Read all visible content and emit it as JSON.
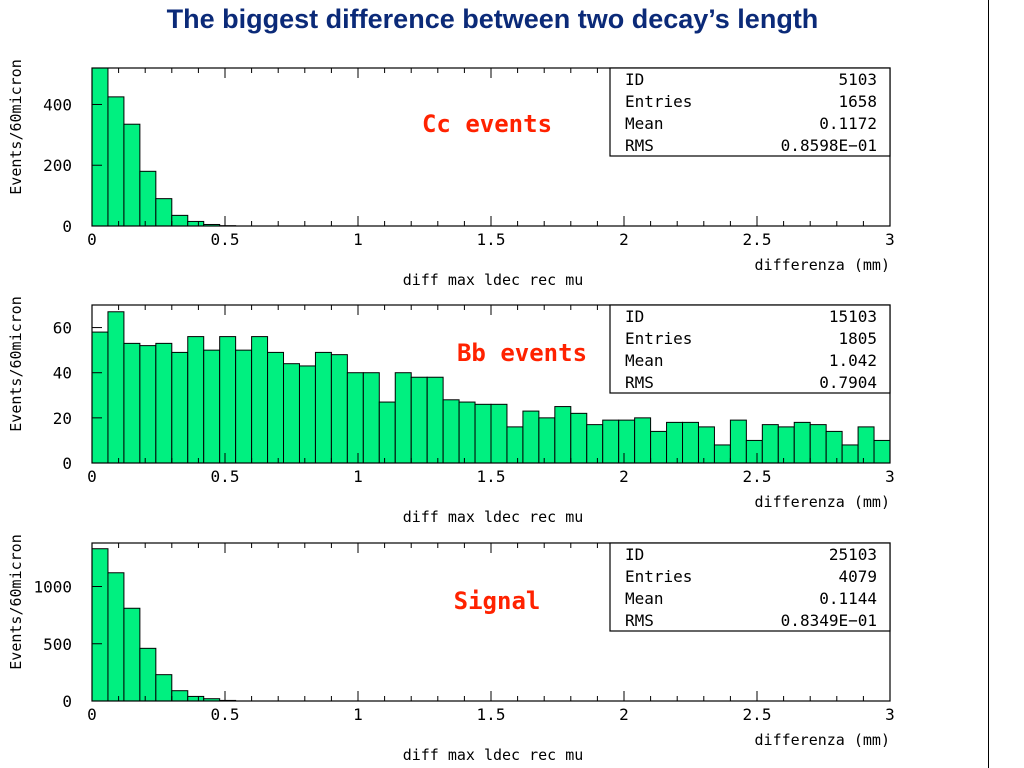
{
  "page": {
    "title": "The biggest difference between two decay’s length"
  },
  "colors": {
    "fill": "#00f080",
    "title": "#0b2a78",
    "annotation": "#ff2200",
    "frame": "#000000"
  },
  "chart_data": [
    {
      "type": "histogram",
      "annotation": "Cc events",
      "ylabel": "Events/60micron",
      "xlabel": "differenza (mm)",
      "histogram_title": "diff max ldec rec mu",
      "xlim": [
        0,
        3
      ],
      "ylim": [
        0,
        520
      ],
      "xticks": [
        "0",
        "0.5",
        "1",
        "1.5",
        "2",
        "2.5",
        "3"
      ],
      "yticks": [
        0,
        200,
        400
      ],
      "bin_width": 0.06,
      "values": [
        530,
        425,
        335,
        180,
        90,
        35,
        15,
        5,
        1,
        0,
        0,
        0,
        0,
        0,
        0,
        0,
        0,
        0,
        0,
        0,
        0,
        0,
        0,
        0,
        0,
        0,
        0,
        0,
        0,
        0,
        0,
        0,
        0,
        0,
        0,
        0,
        0,
        0,
        0,
        0,
        0,
        0,
        0,
        0,
        0,
        0,
        0,
        0,
        0,
        0
      ],
      "stats": [
        {
          "label": "ID",
          "value": "5103"
        },
        {
          "label": "Entries",
          "value": "1658"
        },
        {
          "label": "Mean",
          "value": "0.1172"
        },
        {
          "label": "RMS",
          "value": "0.8598E−01"
        }
      ]
    },
    {
      "type": "histogram",
      "annotation": "Bb events",
      "ylabel": "Events/60micron",
      "xlabel": "differenza (mm)",
      "histogram_title": "diff max ldec rec mu",
      "xlim": [
        0,
        3
      ],
      "ylim": [
        0,
        70
      ],
      "xticks": [
        "0",
        "0.5",
        "1",
        "1.5",
        "2",
        "2.5",
        "3"
      ],
      "yticks": [
        0,
        20,
        40,
        60
      ],
      "bin_width": 0.06,
      "values": [
        58,
        67,
        53,
        52,
        53,
        49,
        56,
        50,
        56,
        50,
        56,
        49,
        44,
        43,
        49,
        48,
        40,
        40,
        27,
        40,
        38,
        38,
        28,
        27,
        26,
        26,
        16,
        23,
        20,
        25,
        22,
        17,
        19,
        19,
        20,
        14,
        18,
        18,
        16,
        8,
        19,
        10,
        17,
        16,
        18,
        17,
        14,
        8,
        16,
        10
      ],
      "stats": [
        {
          "label": "ID",
          "value": "15103"
        },
        {
          "label": "Entries",
          "value": "1805"
        },
        {
          "label": "Mean",
          "value": "1.042"
        },
        {
          "label": "RMS",
          "value": "0.7904"
        }
      ]
    },
    {
      "type": "histogram",
      "annotation": "Signal",
      "ylabel": "Events/60micron",
      "xlabel": "differenza (mm)",
      "histogram_title": "diff max ldec rec mu",
      "xlim": [
        0,
        3
      ],
      "ylim": [
        0,
        1380
      ],
      "xticks": [
        "0",
        "0.5",
        "1",
        "1.5",
        "2",
        "2.5",
        "3"
      ],
      "yticks": [
        0,
        500,
        1000
      ],
      "bin_width": 0.06,
      "values": [
        1330,
        1120,
        810,
        460,
        230,
        90,
        40,
        20,
        5,
        0,
        0,
        0,
        0,
        0,
        0,
        0,
        0,
        0,
        0,
        0,
        0,
        0,
        0,
        0,
        0,
        0,
        0,
        0,
        0,
        0,
        0,
        0,
        0,
        0,
        0,
        0,
        0,
        0,
        0,
        0,
        0,
        0,
        0,
        0,
        0,
        0,
        0,
        0,
        0,
        0
      ],
      "stats": [
        {
          "label": "ID",
          "value": "25103"
        },
        {
          "label": "Entries",
          "value": "4079"
        },
        {
          "label": "Mean",
          "value": "0.1144"
        },
        {
          "label": "RMS",
          "value": "0.8349E−01"
        }
      ]
    }
  ]
}
